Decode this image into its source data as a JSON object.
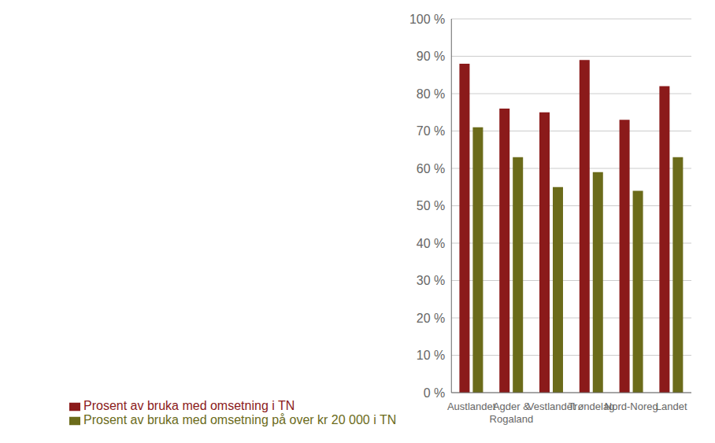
{
  "chart_data": {
    "type": "bar",
    "categories": [
      "Austlandet",
      "Agder &\nRogaland",
      "Vestlandet",
      "Trøndelag",
      "Nord-Noreg",
      "Landet"
    ],
    "series": [
      {
        "name": "Prosent av bruka med omsetning i TN",
        "color": "#8B1A1A",
        "values": [
          88,
          76,
          75,
          89,
          73,
          82
        ]
      },
      {
        "name": "Prosent av bruka med omsetning på over kr 20 000 i TN",
        "color": "#6B6B1A",
        "values": [
          71,
          63,
          55,
          59,
          54,
          63
        ]
      }
    ],
    "ylim": [
      0,
      100
    ],
    "yticks": [
      {
        "value": 0,
        "label": "0 %"
      },
      {
        "value": 10,
        "label": "10 %"
      },
      {
        "value": 20,
        "label": "20 %"
      },
      {
        "value": 30,
        "label": "30 %"
      },
      {
        "value": 40,
        "label": "40 %"
      },
      {
        "value": 50,
        "label": "50 %"
      },
      {
        "value": 60,
        "label": "60 %"
      },
      {
        "value": 70,
        "label": "70 %"
      },
      {
        "value": 80,
        "label": "80 %"
      },
      {
        "value": 90,
        "label": "90 %"
      },
      {
        "value": 100,
        "label": "100 %"
      }
    ],
    "grid": true,
    "legend": "bottom"
  }
}
